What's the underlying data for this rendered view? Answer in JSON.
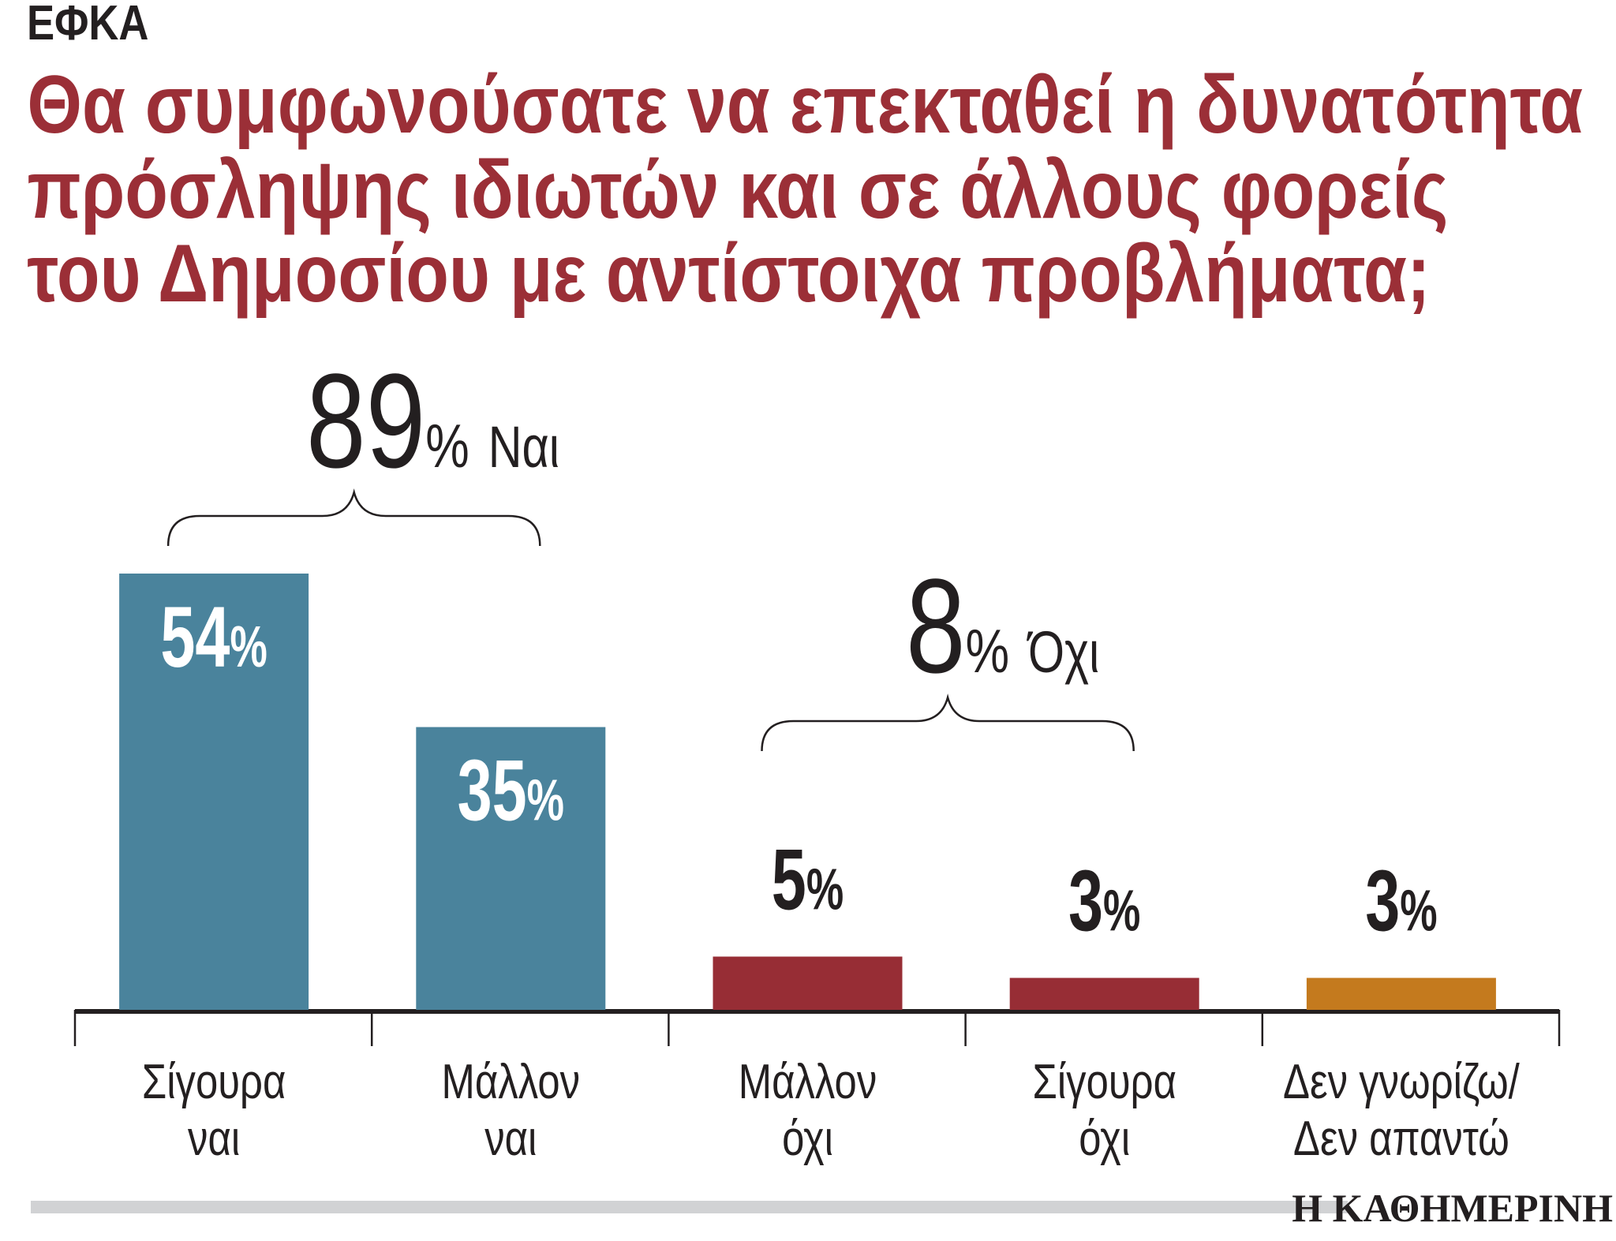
{
  "section": "ΕΦΚΑ",
  "chart_data": {
    "type": "bar",
    "title_lines": [
      "Θα συμφωνούσατε να επεκταθεί η δυνατότητα",
      "πρόσληψης ιδιωτών και σε άλλους φορείς",
      "του Δημοσίου με αντίστοιχα προβλήματα;"
    ],
    "categories": [
      [
        "Σίγουρα",
        "ναι"
      ],
      [
        "Μάλλον",
        "ναι"
      ],
      [
        "Μάλλον",
        "όχι"
      ],
      [
        "Σίγουρα",
        "όχι"
      ],
      [
        "Δεν γνωρίζω/",
        "Δεν απαντώ"
      ]
    ],
    "values": [
      54,
      35,
      5,
      3,
      3
    ],
    "value_labels": [
      "54",
      "35",
      "5",
      "3",
      "3"
    ],
    "unit": "%",
    "colors": [
      "#4a839c",
      "#4a839c",
      "#972d35",
      "#972d35",
      "#c47a1e"
    ],
    "groups": [
      {
        "value": "89",
        "unit": "%",
        "label": "Ναι",
        "categories": [
          0,
          1
        ]
      },
      {
        "value": "8",
        "unit": "%",
        "label": "Όχι",
        "categories": [
          2,
          3
        ]
      }
    ],
    "ylim": [
      0,
      54
    ],
    "grid": false
  },
  "footer": {
    "logo": "Η ΚΑΘΗΜΕΡΙΝΗ"
  }
}
